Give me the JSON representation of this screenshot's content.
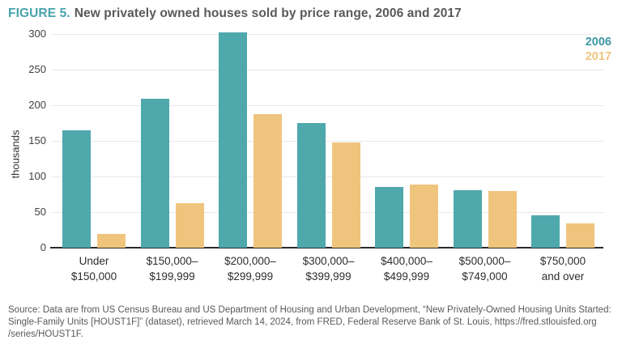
{
  "title": {
    "prefix": "FIGURE 5.",
    "text": "New privately owned houses sold by price range, 2006 and 2017"
  },
  "colors": {
    "series_2006": "#4FA8AC",
    "series_2017": "#EFC57E",
    "title_accent": "#47A3AE",
    "title_text": "#58595B",
    "gridline": "#E8E8E8",
    "axis_line": "#2B2B2B",
    "tick_text": "#414042",
    "source_text": "#58595B"
  },
  "chart_data": {
    "type": "bar",
    "title": "New privately owned houses sold by price range, 2006 and 2017",
    "xlabel": "",
    "ylabel": "thousands",
    "ylim": [
      0,
      300
    ],
    "yticks": [
      0,
      50,
      100,
      150,
      200,
      250,
      300
    ],
    "grid": true,
    "legend_position": "top-right",
    "categories": [
      [
        "Under",
        "$150,000"
      ],
      [
        "$150,000–",
        "$199,999"
      ],
      [
        "$200,000–",
        "$299,999"
      ],
      [
        "$300,000–",
        "$399,999"
      ],
      [
        "$400,000–",
        "$499,999"
      ],
      [
        "$500,000–",
        "$749,000"
      ],
      [
        "$750,000",
        "and over"
      ]
    ],
    "series": [
      {
        "name": "2006",
        "color": "#4FA8AC",
        "values": [
          165,
          209,
          302,
          175,
          85,
          81,
          45
        ]
      },
      {
        "name": "2017",
        "color": "#EFC57E",
        "values": [
          19,
          62,
          188,
          148,
          89,
          80,
          34
        ]
      }
    ]
  },
  "source": {
    "lines": [
      "Source: Data are from US Census Bureau and US Department of Housing and Urban Development, “New Privately-Owned Housing Units Started:",
      "Single-Family Units [HOUST1F]” (dataset), retrieved March 14, 2024, from FRED, Federal Reserve Bank of St. Louis, https://fred.stlouisfed.org",
      "/series/HOUST1F."
    ]
  }
}
